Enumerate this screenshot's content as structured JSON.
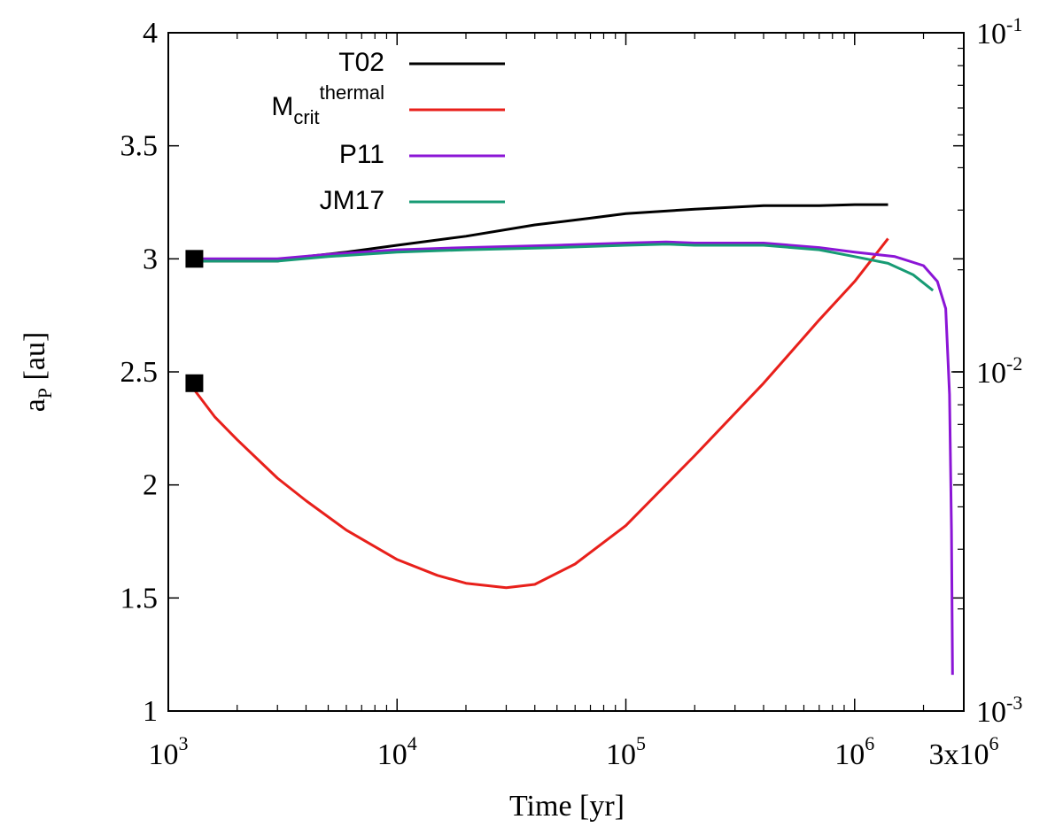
{
  "chart_data": {
    "type": "line",
    "xlabel": "Time [yr]",
    "ylabel_main": "a",
    "ylabel_sub": "P",
    "ylabel_unit": " [au]",
    "xscale": "log",
    "xlim": [
      1000,
      3000000
    ],
    "ylim": [
      1,
      4
    ],
    "y2scale": "log",
    "y2lim": [
      0.001,
      0.1
    ],
    "legend_position": "top-left",
    "x_ticks": [
      {
        "value": 1000,
        "base": "10",
        "exp": "3"
      },
      {
        "value": 10000,
        "base": "10",
        "exp": "4"
      },
      {
        "value": 100000,
        "base": "10",
        "exp": "5"
      },
      {
        "value": 1000000,
        "base": "10",
        "exp": "6"
      },
      {
        "value": 3000000,
        "base": "3x10",
        "exp": "6"
      }
    ],
    "y_ticks": [
      {
        "value": 1,
        "label": "1"
      },
      {
        "value": 1.5,
        "label": "1.5"
      },
      {
        "value": 2,
        "label": "2"
      },
      {
        "value": 2.5,
        "label": "2.5"
      },
      {
        "value": 3,
        "label": "3"
      },
      {
        "value": 3.5,
        "label": "3.5"
      },
      {
        "value": 4,
        "label": "4"
      }
    ],
    "y2_ticks": [
      {
        "value": 0.001,
        "base": "10",
        "exp": "-3"
      },
      {
        "value": 0.01,
        "base": "10",
        "exp": "-2"
      },
      {
        "value": 0.1,
        "base": "10",
        "exp": "-1"
      }
    ],
    "markers": [
      {
        "x": 1300,
        "y": 3.0
      },
      {
        "x": 1300,
        "y": 2.45
      }
    ],
    "series": [
      {
        "name": "T02",
        "color": "#000000",
        "x": [
          1300,
          2000,
          3000,
          4000,
          6000,
          10000,
          20000,
          40000,
          70000,
          100000,
          200000,
          400000,
          700000,
          1000000,
          1400000
        ],
        "y": [
          2.99,
          2.99,
          2.99,
          3.01,
          3.03,
          3.06,
          3.1,
          3.15,
          3.18,
          3.2,
          3.22,
          3.235,
          3.235,
          3.24,
          3.24
        ]
      },
      {
        "name": "M",
        "name_sub": "crit",
        "name_sup": "thermal",
        "color": "#e8201b",
        "x": [
          1300,
          1600,
          2000,
          3000,
          4000,
          6000,
          10000,
          15000,
          20000,
          30000,
          40000,
          60000,
          100000,
          200000,
          400000,
          700000,
          1000000,
          1400000
        ],
        "y": [
          2.42,
          2.3,
          2.2,
          2.03,
          1.93,
          1.8,
          1.67,
          1.6,
          1.565,
          1.545,
          1.56,
          1.65,
          1.82,
          2.13,
          2.45,
          2.73,
          2.9,
          3.09
        ]
      },
      {
        "name": "P11",
        "color": "#8b15d6",
        "x": [
          1300,
          3000,
          5000,
          10000,
          20000,
          50000,
          100000,
          150000,
          200000,
          400000,
          700000,
          1000000,
          1500000,
          2000000,
          2300000,
          2500000,
          2600000,
          2650000,
          2680000
        ],
        "y": [
          3.0,
          3.0,
          3.02,
          3.04,
          3.05,
          3.06,
          3.07,
          3.075,
          3.07,
          3.07,
          3.05,
          3.03,
          3.01,
          2.97,
          2.9,
          2.78,
          2.4,
          1.8,
          1.16
        ]
      },
      {
        "name": "JM17",
        "color": "#179b74",
        "x": [
          1300,
          3000,
          5000,
          10000,
          20000,
          50000,
          100000,
          150000,
          200000,
          400000,
          700000,
          1000000,
          1400000,
          1800000,
          2200000
        ],
        "y": [
          2.99,
          2.99,
          3.01,
          3.03,
          3.04,
          3.05,
          3.06,
          3.065,
          3.06,
          3.06,
          3.04,
          3.01,
          2.98,
          2.93,
          2.86
        ]
      }
    ]
  }
}
